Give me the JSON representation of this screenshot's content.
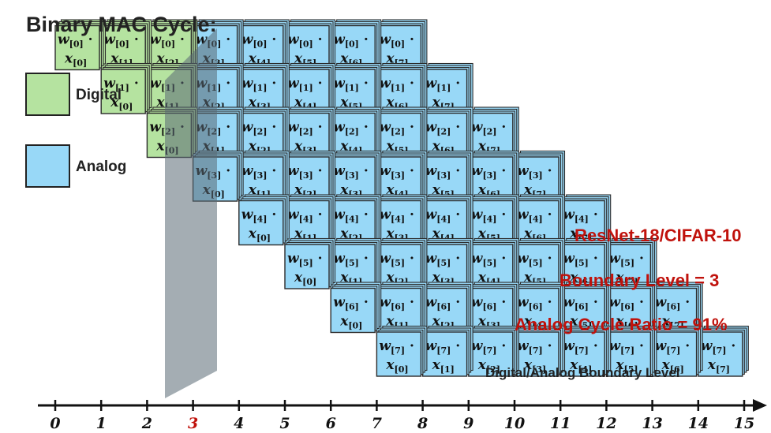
{
  "title": "Binary MAC Cycle:",
  "legend": [
    {
      "label": "Digital",
      "color": "#b5e3a0"
    },
    {
      "label": "Analog",
      "color": "#98d8f7"
    }
  ],
  "annotations": {
    "model": "ResNet-18/CIFAR-10",
    "boundary": "Boundary Level = 3",
    "ratio": "Analog Cycle Ratio = 91%",
    "axis_label": "Digital/Analog Boundary Level"
  },
  "colors": {
    "digital": "#b5e3a0",
    "analog": "#98d8f7",
    "border": "#2b2b2b",
    "highlight": "#c0120c",
    "plane": "#5a6a74"
  },
  "grid": {
    "weight_symbol": "w",
    "input_symbol": "x",
    "bits": 8,
    "boundary_level": 3
  },
  "axis": {
    "ticks": [
      "0",
      "1",
      "2",
      "3",
      "4",
      "5",
      "6",
      "7",
      "8",
      "9",
      "10",
      "11",
      "12",
      "13",
      "14",
      "15"
    ],
    "highlight_tick": "3"
  }
}
